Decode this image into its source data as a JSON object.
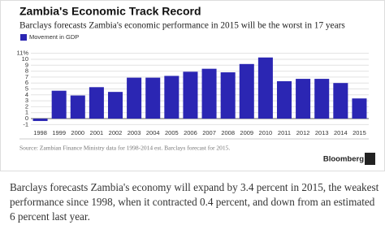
{
  "chart_data": {
    "type": "bar",
    "title": "Zambia's Economic Track Record",
    "subtitle": "Barclays forecasts Zambia's economic performance in 2015 will be the worst in 17 years",
    "categories": [
      "1998",
      "1999",
      "2000",
      "2001",
      "2002",
      "2003",
      "2004",
      "2005",
      "2006",
      "2007",
      "2008",
      "2009",
      "2010",
      "2011",
      "2012",
      "2013",
      "2014",
      "2015"
    ],
    "series": [
      {
        "name": "Movement in GDP",
        "color": "#2b26b3",
        "values": [
          -0.4,
          4.7,
          3.9,
          5.3,
          4.5,
          6.9,
          6.9,
          7.2,
          7.9,
          8.4,
          7.8,
          9.2,
          10.3,
          6.3,
          6.7,
          6.7,
          6.0,
          3.4
        ]
      }
    ],
    "ylim": [
      -1.5,
      11.5
    ],
    "yticks": [
      -1,
      0,
      1,
      2,
      3,
      4,
      5,
      6,
      7,
      8,
      9,
      10,
      {
        "value": 11,
        "label": "11%"
      }
    ],
    "grid": true,
    "legend": "top-left",
    "source": "Source: Zambian Finance Ministry data for 1998-2014 est. Barclays forecast for 2015.",
    "credit": "Bloomberg"
  },
  "article_text": "Barclays forecasts Zambia's economy will expand by 3.4 percent in 2015, the weakest performance since 1998, when it contracted 0.4 percent, and down from an estimated 6 percent last year."
}
